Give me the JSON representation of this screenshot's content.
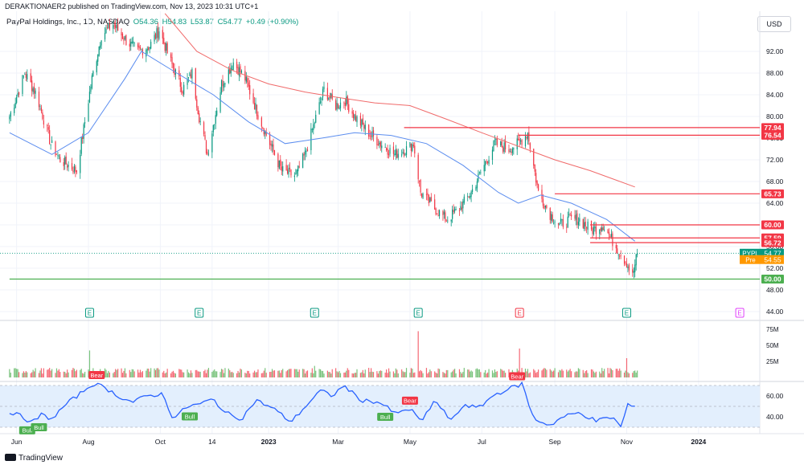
{
  "header": {
    "publisher": "DERAKTIONAER2 published on TradingView.com, Nov 13, 2023 10:31 UTC+1"
  },
  "legend": {
    "symbol": "PayPal Holdings, Inc., 1D, NASDAQ",
    "open": "O54.36",
    "high": "H54.83",
    "low": "L53.87",
    "close": "C54.77",
    "change": "+0.49 (+0.90%)"
  },
  "currency_button": "USD",
  "footer": {
    "brand": "TradingView"
  },
  "colors": {
    "up": "#089981",
    "down": "#f23645",
    "level": "#f23645",
    "support": "#4caf50",
    "ma_fast": "#5b8def",
    "ma_slow": "#f06a6a",
    "rsi": "#2962ff",
    "rsi_band": "#e3effd",
    "volume_up": "#4caf50",
    "volume_down": "#f23645"
  },
  "chart_data": [
    {
      "type": "candlestick",
      "title": "PayPal Holdings, Inc., 1D, NASDAQ",
      "ylim": [
        44,
        96
      ],
      "ytick_labels": [
        "92.00",
        "88.00",
        "84.00",
        "80.00",
        "76.00",
        "72.00",
        "68.00",
        "64.00",
        "60.00",
        "56.00",
        "52.00",
        "48.00",
        "44.00"
      ],
      "xtick_labels": [
        "Jun",
        "Aug",
        "Oct",
        "14",
        "2023",
        "Mar",
        "May",
        "Jul",
        "Sep",
        "Nov",
        "2024"
      ],
      "x_dates": [
        "2022-06-01",
        "2022-08-01",
        "2022-10-01",
        "2022-11-14",
        "2023-01-01",
        "2023-03-01",
        "2023-05-01",
        "2023-07-01",
        "2023-09-01",
        "2023-11-01",
        "2024-01-01"
      ],
      "close_path": {
        "x": [
          "2022-05-26",
          "2022-06-08",
          "2022-06-18",
          "2022-06-30",
          "2022-07-08",
          "2022-07-22",
          "2022-07-29",
          "2022-08-04",
          "2022-08-12",
          "2022-08-22",
          "2022-09-02",
          "2022-09-12",
          "2022-09-22",
          "2022-09-30",
          "2022-10-10",
          "2022-10-20",
          "2022-10-28",
          "2022-11-03",
          "2022-11-10",
          "2022-11-22",
          "2022-12-02",
          "2022-12-12",
          "2022-12-22",
          "2023-01-02",
          "2023-01-12",
          "2023-01-24",
          "2023-02-01",
          "2023-02-09",
          "2023-02-17",
          "2023-02-27",
          "2023-03-07",
          "2023-03-15",
          "2023-03-27",
          "2023-04-06",
          "2023-04-18",
          "2023-04-28",
          "2023-05-04",
          "2023-05-10",
          "2023-05-22",
          "2023-06-01",
          "2023-06-12",
          "2023-06-22",
          "2023-07-03",
          "2023-07-12",
          "2023-07-24",
          "2023-08-01",
          "2023-08-09",
          "2023-08-18",
          "2023-08-28",
          "2023-09-05",
          "2023-09-14",
          "2023-09-22",
          "2023-10-02",
          "2023-10-12",
          "2023-10-20",
          "2023-10-26",
          "2023-11-01",
          "2023-11-06",
          "2023-11-10"
        ],
        "y": [
          80,
          88,
          84,
          75,
          72,
          70,
          79,
          87,
          95,
          97,
          94,
          92,
          93,
          96,
          90,
          85,
          88,
          80,
          73,
          86,
          90,
          87,
          81,
          75,
          70,
          69,
          73,
          79,
          85,
          82,
          83,
          80,
          77,
          75,
          73,
          74,
          75,
          66,
          63,
          61,
          63,
          66,
          71,
          75,
          74,
          75,
          77,
          66,
          62,
          60,
          61,
          61,
          59,
          60,
          57,
          55,
          53,
          50.5,
          54.77
        ]
      },
      "moving_averages": [
        {
          "x": [
            "2022-05-26",
            "2022-07-01",
            "2022-08-01",
            "2022-09-01",
            "2022-09-15",
            "2022-10-15",
            "2022-11-15",
            "2022-12-15",
            "2023-01-15",
            "2023-02-15",
            "2023-03-15",
            "2023-04-15",
            "2023-05-15",
            "2023-06-15",
            "2023-07-15",
            "2023-08-01",
            "2023-08-20",
            "2023-09-15",
            "2023-10-15",
            "2023-11-08"
          ],
          "y": [
            77,
            73,
            77,
            87,
            92,
            88,
            84,
            79,
            75,
            76,
            77,
            76.5,
            75,
            71,
            66,
            64,
            65.5,
            64,
            61,
            57
          ]
        },
        {
          "x": [
            "2022-10-05",
            "2022-11-01",
            "2022-12-01",
            "2023-01-01",
            "2023-02-01",
            "2023-03-01",
            "2023-04-01",
            "2023-05-01",
            "2023-06-01",
            "2023-07-01",
            "2023-08-01",
            "2023-09-01",
            "2023-10-01",
            "2023-11-08"
          ],
          "y": [
            99,
            92,
            88.5,
            86,
            84.5,
            83.5,
            82.5,
            82,
            79.5,
            77,
            74.5,
            72,
            70,
            67
          ]
        }
      ],
      "horizontal_levels": [
        {
          "label": "77.94",
          "value": 77.94,
          "start": "2023-04-26"
        },
        {
          "label": "76.54",
          "value": 76.54,
          "start": "2023-08-01"
        },
        {
          "label": "65.73",
          "value": 65.73,
          "start": "2023-09-01"
        },
        {
          "label": "60.00",
          "value": 60.0,
          "start": "2023-10-01"
        },
        {
          "label": "57.59",
          "value": 57.59,
          "start": "2023-10-01"
        },
        {
          "label": "56.72",
          "value": 56.72,
          "start": "2023-10-01"
        },
        {
          "label": "50.00",
          "value": 50.0,
          "start": "2022-05-26",
          "color": "support"
        }
      ],
      "price_labels": [
        {
          "label": "PYPL",
          "value": "54.77",
          "y": 54.77,
          "color": "#089981"
        },
        {
          "label": "Pre",
          "value": "54.55",
          "y": 53.6,
          "color": "#ff9800"
        }
      ],
      "earnings_markers": [
        {
          "x": "2022-08-02",
          "label": "E",
          "color": "#089981"
        },
        {
          "x": "2022-11-03",
          "label": "E",
          "color": "#089981"
        },
        {
          "x": "2023-02-09",
          "label": "E",
          "color": "#089981"
        },
        {
          "x": "2023-05-08",
          "label": "E",
          "color": "#089981"
        },
        {
          "x": "2023-08-02",
          "label": "E",
          "color": "#f23645"
        },
        {
          "x": "2023-11-01",
          "label": "E",
          "color": "#089981"
        },
        {
          "x": "2024-02-05",
          "label": "E",
          "color": "#e040fb"
        }
      ]
    },
    {
      "type": "bar",
      "title": "",
      "ytick_labels": [
        "75M",
        "50M",
        "25M"
      ],
      "ylim": [
        0,
        75
      ],
      "spikes": [
        {
          "x": "2022-08-02",
          "value": 42
        },
        {
          "x": "2023-02-09",
          "value": 18
        },
        {
          "x": "2023-05-08",
          "value": 72
        },
        {
          "x": "2023-08-02",
          "value": 45
        },
        {
          "x": "2023-11-01",
          "value": 30
        }
      ]
    },
    {
      "type": "line",
      "title": "",
      "ytick_labels": [
        "60.00",
        "40.00"
      ],
      "ylim": [
        25,
        80
      ],
      "band": [
        30,
        70
      ],
      "x": [
        "2022-05-26",
        "2022-06-06",
        "2022-06-14",
        "2022-06-22",
        "2022-07-01",
        "2022-07-13",
        "2022-07-27",
        "2022-08-05",
        "2022-08-15",
        "2022-08-26",
        "2022-09-07",
        "2022-09-20",
        "2022-10-03",
        "2022-10-12",
        "2022-10-24",
        "2022-11-03",
        "2022-11-15",
        "2022-11-25",
        "2022-12-09",
        "2022-12-21",
        "2023-01-05",
        "2023-01-20",
        "2023-02-03",
        "2023-02-14",
        "2023-02-24",
        "2023-03-06",
        "2023-03-20",
        "2023-04-05",
        "2023-04-20",
        "2023-04-28",
        "2023-05-05",
        "2023-05-10",
        "2023-05-22",
        "2023-06-05",
        "2023-06-16",
        "2023-06-28",
        "2023-07-10",
        "2023-07-24",
        "2023-08-01",
        "2023-08-04",
        "2023-08-14",
        "2023-08-28",
        "2023-09-08",
        "2023-09-22",
        "2023-10-06",
        "2023-10-20",
        "2023-10-27",
        "2023-11-02",
        "2023-11-10"
      ],
      "y": [
        45,
        40,
        34,
        42,
        38,
        52,
        64,
        72,
        68,
        60,
        54,
        60,
        62,
        38,
        50,
        52,
        57,
        44,
        38,
        56,
        48,
        35,
        52,
        65,
        60,
        70,
        56,
        54,
        42,
        48,
        44,
        34,
        56,
        36,
        52,
        48,
        60,
        67,
        70,
        72,
        38,
        32,
        40,
        44,
        36,
        40,
        30,
        52,
        47
      ],
      "signals": [
        {
          "x": "2022-06-10",
          "label": "Bull"
        },
        {
          "x": "2022-06-20",
          "label": "Bull"
        },
        {
          "x": "2022-08-08",
          "label": "Bear"
        },
        {
          "x": "2022-10-26",
          "label": "Bull"
        },
        {
          "x": "2023-04-10",
          "label": "Bull"
        },
        {
          "x": "2023-05-01",
          "label": "Bear"
        },
        {
          "x": "2023-07-31",
          "label": "Bear"
        }
      ]
    }
  ]
}
